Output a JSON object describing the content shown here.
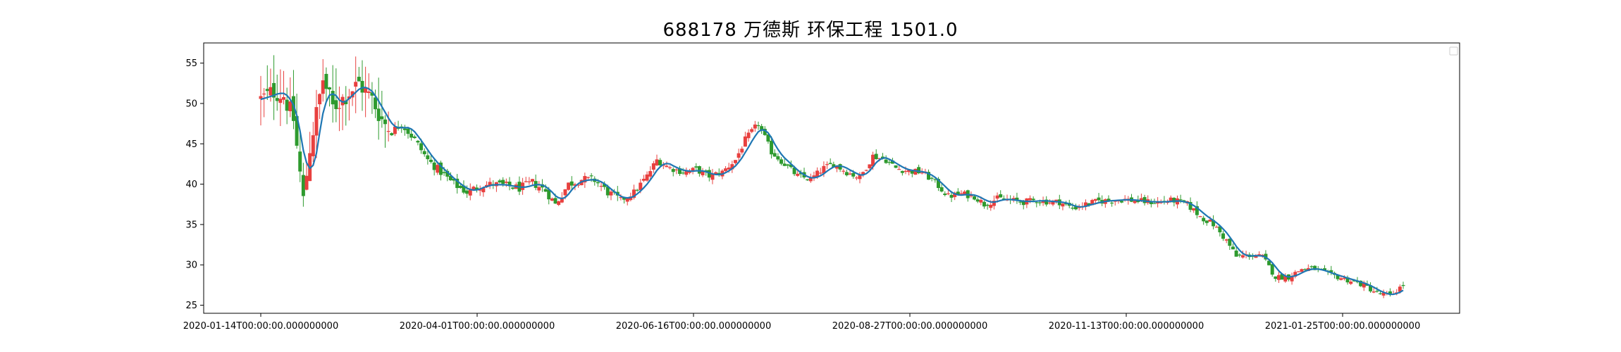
{
  "chart_data": {
    "type": "candlestick",
    "title": "688178 万德斯 环保工程 1501.0",
    "xlabel": "",
    "ylabel": "",
    "ylim": [
      24,
      57.5
    ],
    "y_ticks": [
      25,
      30,
      35,
      40,
      45,
      50,
      55
    ],
    "x_ticks": [
      "2020-01-14T00:00:00.000000000",
      "2020-04-01T00:00:00.000000000",
      "2020-06-16T00:00:00.000000000",
      "2020-08-27T00:00:00.000000000",
      "2020-11-13T00:00:00.000000000",
      "2021-01-25T00:00:00.000000000"
    ],
    "up_color": "#e8403f",
    "down_color": "#2e9a2e",
    "ma_color": "#1f77b4",
    "legend": "top-right",
    "grid": false,
    "close_anchors": [
      [
        0,
        50.5
      ],
      [
        4,
        51.5
      ],
      [
        7,
        51.0
      ],
      [
        10,
        48.0
      ],
      [
        13,
        38.0
      ],
      [
        15,
        44.5
      ],
      [
        19,
        53.0
      ],
      [
        22,
        49.5
      ],
      [
        26,
        51.0
      ],
      [
        30,
        52.5
      ],
      [
        34,
        50.5
      ],
      [
        37,
        48.0
      ],
      [
        40,
        46.5
      ],
      [
        43,
        47.5
      ],
      [
        47,
        45.5
      ],
      [
        51,
        43.0
      ],
      [
        55,
        41.5
      ],
      [
        59,
        40.0
      ],
      [
        63,
        39.0
      ],
      [
        67,
        39.8
      ],
      [
        71,
        40.0
      ],
      [
        75,
        39.8
      ],
      [
        79,
        39.5
      ],
      [
        83,
        40.2
      ],
      [
        87,
        39.2
      ],
      [
        90,
        37.5
      ],
      [
        94,
        40.0
      ],
      [
        98,
        40.6
      ],
      [
        102,
        40.5
      ],
      [
        106,
        39.0
      ],
      [
        110,
        38.0
      ],
      [
        114,
        39.0
      ],
      [
        118,
        41.0
      ],
      [
        121,
        43.0
      ],
      [
        125,
        42.0
      ],
      [
        129,
        41.5
      ],
      [
        133,
        41.8
      ],
      [
        137,
        41.0
      ],
      [
        141,
        41.5
      ],
      [
        145,
        43.0
      ],
      [
        148,
        45.5
      ],
      [
        152,
        47.5
      ],
      [
        156,
        44.0
      ],
      [
        160,
        42.5
      ],
      [
        164,
        41.0
      ],
      [
        168,
        40.6
      ],
      [
        172,
        42.0
      ],
      [
        175,
        42.5
      ],
      [
        179,
        41.5
      ],
      [
        183,
        40.8
      ],
      [
        187,
        43.5
      ],
      [
        191,
        43.0
      ],
      [
        194,
        42.0
      ],
      [
        198,
        41.6
      ],
      [
        202,
        41.5
      ],
      [
        206,
        40.2
      ],
      [
        210,
        38.5
      ],
      [
        214,
        38.8
      ],
      [
        218,
        38.5
      ],
      [
        221,
        37.5
      ],
      [
        225,
        38.2
      ],
      [
        229,
        38.0
      ],
      [
        233,
        37.8
      ],
      [
        237,
        38.0
      ],
      [
        241,
        37.8
      ],
      [
        244,
        37.8
      ],
      [
        248,
        37.0
      ],
      [
        252,
        37.5
      ],
      [
        256,
        37.9
      ],
      [
        260,
        38.0
      ],
      [
        264,
        38.1
      ],
      [
        268,
        37.9
      ],
      [
        271,
        37.8
      ],
      [
        275,
        37.8
      ],
      [
        279,
        38.0
      ],
      [
        283,
        37.5
      ],
      [
        287,
        36.0
      ],
      [
        291,
        35.0
      ],
      [
        295,
        33.0
      ],
      [
        298,
        31.0
      ],
      [
        302,
        31.2
      ],
      [
        306,
        31.0
      ],
      [
        310,
        28.5
      ],
      [
        314,
        28.5
      ],
      [
        318,
        29.5
      ],
      [
        322,
        29.5
      ],
      [
        325,
        29.0
      ],
      [
        329,
        28.5
      ],
      [
        333,
        28.0
      ],
      [
        337,
        27.5
      ],
      [
        341,
        26.5
      ],
      [
        345,
        26.2
      ],
      [
        349,
        27.5
      ]
    ],
    "n_candles": 350
  }
}
